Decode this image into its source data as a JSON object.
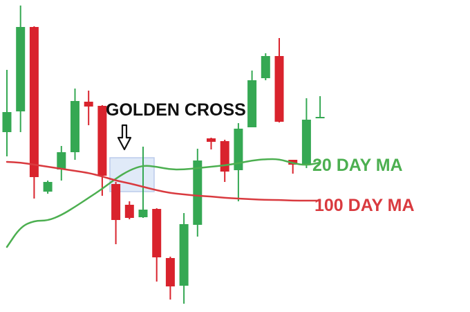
{
  "chart_data": {
    "type": "candlestick",
    "title": "",
    "xlabel": "",
    "ylabel": "",
    "ylim": [
      0,
      451
    ],
    "grid": false,
    "legend": "none",
    "colors": {
      "bull": "#35a853",
      "bear": "#d9232d",
      "ma20": "#4caf50",
      "ma100": "#d93a3f",
      "cross_box_fill": "#dfe9f8",
      "cross_box_stroke": "#b8c9ea",
      "text_dark": "#111111"
    },
    "candles": [
      {
        "x": 0,
        "open": 260,
        "close": 289,
        "high": 350,
        "low": 225
      },
      {
        "x": 1,
        "open": 290,
        "close": 412,
        "high": 443,
        "low": 260
      },
      {
        "x": 2,
        "open": 412,
        "close": 195,
        "high": 413,
        "low": 164
      },
      {
        "x": 3,
        "open": 174,
        "close": 188,
        "high": 190,
        "low": 171
      },
      {
        "x": 4,
        "open": 206,
        "close": 231,
        "high": 240,
        "low": 190
      },
      {
        "x": 5,
        "open": 231,
        "close": 305,
        "high": 323,
        "low": 220
      },
      {
        "x": 6,
        "open": 304,
        "close": 297,
        "high": 320,
        "low": 270
      },
      {
        "x": 7,
        "open": 298,
        "close": 197,
        "high": 299,
        "low": 168
      },
      {
        "x": 8,
        "open": 185,
        "close": 133,
        "high": 188,
        "low": 98
      },
      {
        "x": 9,
        "open": 155,
        "close": 136,
        "high": 160,
        "low": 134
      },
      {
        "x": 10,
        "open": 137,
        "close": 148,
        "high": 239,
        "low": 136
      },
      {
        "x": 11,
        "open": 149,
        "close": 79,
        "high": 150,
        "low": 44
      },
      {
        "x": 12,
        "open": 78,
        "close": 37,
        "high": 80,
        "low": 18
      },
      {
        "x": 13,
        "open": 38,
        "close": 127,
        "high": 143,
        "low": 12
      },
      {
        "x": 14,
        "open": 126,
        "close": 219,
        "high": 236,
        "low": 109
      },
      {
        "x": 15,
        "open": 251,
        "close": 246,
        "high": 252,
        "low": 235
      },
      {
        "x": 16,
        "open": 247,
        "close": 203,
        "high": 249,
        "low": 188
      },
      {
        "x": 17,
        "open": 205,
        "close": 265,
        "high": 273,
        "low": 160
      },
      {
        "x": 18,
        "open": 267,
        "close": 335,
        "high": 349,
        "low": 268
      },
      {
        "x": 19,
        "open": 338,
        "close": 370,
        "high": 374,
        "low": 335
      },
      {
        "x": 20,
        "open": 370,
        "close": 275,
        "high": 396,
        "low": 274
      },
      {
        "x": 21,
        "open": 220,
        "close": 213,
        "high": 220,
        "low": 200
      },
      {
        "x": 22,
        "open": 213,
        "close": 278,
        "high": 309,
        "low": 208
      },
      {
        "x": 23,
        "open": 282,
        "close": 282,
        "high": 312,
        "low": 280
      }
    ],
    "series": [
      {
        "name": "20 DAY MA",
        "x": [
          0,
          1,
          2,
          3,
          4,
          5,
          6,
          7,
          8,
          9,
          10,
          11,
          12,
          13,
          14,
          15,
          16,
          17,
          18,
          19,
          20,
          21,
          22,
          23
        ],
        "values": [
          94,
          123,
          132,
          132,
          140,
          152,
          165,
          178,
          193,
          205,
          212,
          210,
          206,
          206,
          208,
          210,
          212,
          215,
          219,
          221,
          221,
          215,
          212,
          216
        ]
      },
      {
        "name": "100 DAY MA",
        "x": [
          0,
          1,
          2,
          3,
          4,
          5,
          6,
          7,
          8,
          9,
          10,
          11,
          12,
          13,
          14,
          15,
          16,
          17,
          18,
          19,
          20,
          21,
          22,
          23
        ],
        "values": [
          217,
          216,
          213,
          210,
          207,
          204,
          201,
          196,
          190,
          186,
          181,
          176,
          172,
          170,
          168,
          167,
          165,
          164,
          163,
          162,
          162,
          161,
          161,
          161
        ]
      }
    ],
    "annotations": {
      "golden_cross_label": "GOLDEN CROSS",
      "ma20_label": "20 DAY MA",
      "ma100_label": "100 DAY MA"
    }
  }
}
